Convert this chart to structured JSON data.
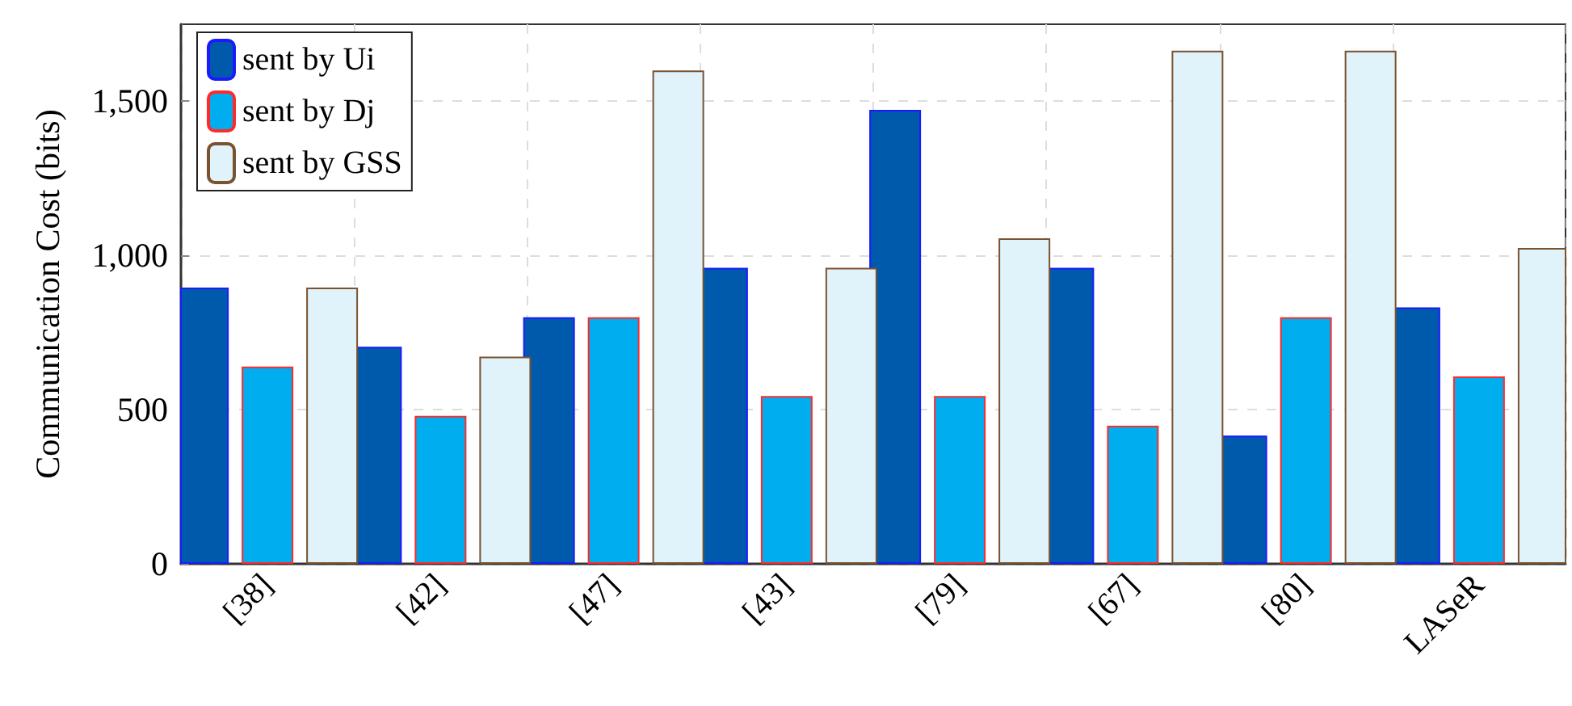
{
  "chart_data": {
    "type": "bar",
    "ylabel": "Communication Cost (bits)",
    "categories": [
      "[38]",
      "[42]",
      "[47]",
      "[43]",
      "[79]",
      "[67]",
      "[80]",
      "LASeR"
    ],
    "series": [
      {
        "name": "sent by Ui",
        "color": "#005aab",
        "values": [
          896,
          704,
          800,
          960,
          1472,
          960,
          416,
          832
        ]
      },
      {
        "name": "sent by Dj",
        "color": "#00aeef",
        "values": [
          640,
          480,
          800,
          544,
          544,
          448,
          800,
          608
        ]
      },
      {
        "name": "sent by GSS",
        "color": "#e0f2fa",
        "values": [
          896,
          672,
          1600,
          960,
          1056,
          1664,
          1664,
          1024
        ]
      }
    ],
    "ylim": [
      0,
      1750
    ],
    "yticks": [
      0,
      500,
      {
        "value": 1000,
        "label": "1,000"
      },
      {
        "value": 1500,
        "label": "1,500"
      }
    ],
    "grid": true,
    "legend": "top left"
  }
}
